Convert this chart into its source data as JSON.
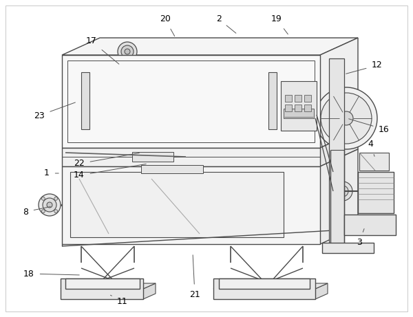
{
  "background_color": "#ffffff",
  "line_color": "#4a4a4a",
  "figsize": [
    6.0,
    4.61
  ],
  "dpi": 100,
  "annotations": [
    [
      "17",
      175,
      95,
      133,
      60
    ],
    [
      "20",
      255,
      55,
      240,
      28
    ],
    [
      "2",
      345,
      50,
      318,
      28
    ],
    [
      "19",
      420,
      52,
      402,
      28
    ],
    [
      "12",
      500,
      108,
      548,
      95
    ],
    [
      "23",
      112,
      148,
      57,
      168
    ],
    [
      "16",
      504,
      172,
      558,
      188
    ],
    [
      "22",
      205,
      222,
      115,
      238
    ],
    [
      "14",
      215,
      238,
      115,
      255
    ],
    [
      "1",
      88,
      252,
      68,
      252
    ],
    [
      "8",
      76,
      300,
      37,
      308
    ],
    [
      "4",
      545,
      230,
      538,
      210
    ],
    [
      "3",
      530,
      330,
      522,
      352
    ],
    [
      "18",
      118,
      400,
      42,
      398
    ],
    [
      "11",
      158,
      428,
      178,
      438
    ],
    [
      "21",
      280,
      368,
      283,
      428
    ]
  ]
}
